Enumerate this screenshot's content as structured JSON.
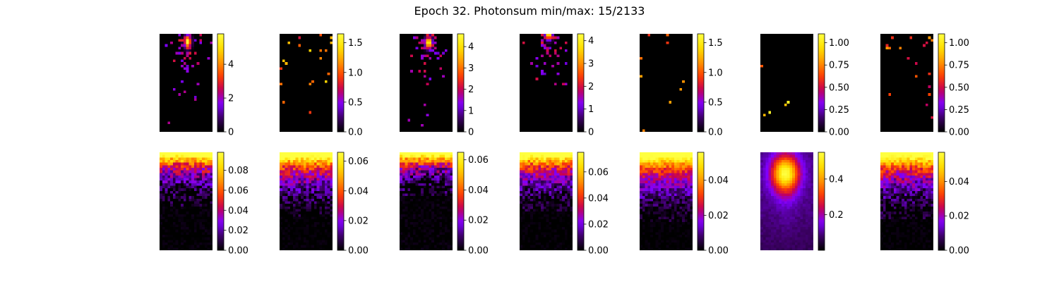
{
  "figure": {
    "title": "Epoch 32. Photonsum min/max: 15/2133"
  },
  "colormap": {
    "name": "gnuplot",
    "stops": [
      "#000000",
      "#3d0066",
      "#8000ff",
      "#c40055",
      "#ff3f00",
      "#ff9900",
      "#ffe000",
      "#ffff40"
    ]
  },
  "chart_data": [
    {
      "type": "heatmap",
      "row": 1,
      "col": 1,
      "pattern": "blob",
      "blob": {
        "cx": 0.53,
        "cy": 0.08,
        "amp": 5.8,
        "spread": 0.12,
        "density": 0.55,
        "noise_floor": 0.0
      },
      "colorbar": {
        "min": 0,
        "max": 5.8,
        "ticks": [
          0,
          2,
          4
        ],
        "tick_labels": [
          "0",
          "2",
          "4"
        ]
      }
    },
    {
      "type": "heatmap",
      "row": 1,
      "col": 2,
      "pattern": "sparse",
      "sparse": {
        "density": 0.035,
        "top_bias": 0.5,
        "level": 0.85
      },
      "colorbar": {
        "min": 0,
        "max": 1.65,
        "ticks": [
          0,
          0.5,
          1.0,
          1.5
        ],
        "tick_labels": [
          "0.0",
          "0.5",
          "1.0",
          "1.5"
        ]
      }
    },
    {
      "type": "heatmap",
      "row": 1,
      "col": 3,
      "pattern": "blob",
      "blob": {
        "cx": 0.55,
        "cy": 0.09,
        "amp": 4.6,
        "spread": 0.13,
        "density": 0.55,
        "noise_floor": 0.0
      },
      "colorbar": {
        "min": 0,
        "max": 4.6,
        "ticks": [
          0,
          1,
          2,
          3,
          4
        ],
        "tick_labels": [
          "0",
          "1",
          "2",
          "3",
          "4"
        ]
      }
    },
    {
      "type": "heatmap",
      "row": 1,
      "col": 4,
      "pattern": "blob",
      "blob": {
        "cx": 0.55,
        "cy": 0.0,
        "amp": 4.3,
        "spread": 0.14,
        "density": 0.5,
        "noise_floor": 0.0
      },
      "colorbar": {
        "min": 0,
        "max": 4.3,
        "ticks": [
          0,
          1,
          2,
          3,
          4
        ],
        "tick_labels": [
          "0",
          "1",
          "2",
          "3",
          "4"
        ]
      }
    },
    {
      "type": "heatmap",
      "row": 1,
      "col": 5,
      "pattern": "sparse",
      "sparse": {
        "density": 0.02,
        "top_bias": 0.85,
        "level": 0.75
      },
      "colorbar": {
        "min": 0,
        "max": 1.65,
        "ticks": [
          0,
          0.5,
          1.0,
          1.5
        ],
        "tick_labels": [
          "0.0",
          "0.5",
          "1.0",
          "1.5"
        ]
      }
    },
    {
      "type": "heatmap",
      "row": 1,
      "col": 6,
      "pattern": "sparse",
      "sparse": {
        "density": 0.008,
        "top_bias": 0.3,
        "level": 0.95
      },
      "colorbar": {
        "min": 0,
        "max": 1.1,
        "ticks": [
          0,
          0.25,
          0.5,
          0.75,
          1.0
        ],
        "tick_labels": [
          "0.00",
          "0.25",
          "0.50",
          "0.75",
          "1.00"
        ]
      }
    },
    {
      "type": "heatmap",
      "row": 1,
      "col": 7,
      "pattern": "sparse",
      "sparse": {
        "density": 0.03,
        "top_bias": 0.9,
        "level": 0.75
      },
      "colorbar": {
        "min": 0,
        "max": 1.1,
        "ticks": [
          0,
          0.25,
          0.5,
          0.75,
          1.0
        ],
        "tick_labels": [
          "0.00",
          "0.25",
          "0.50",
          "0.75",
          "1.00"
        ]
      }
    },
    {
      "type": "heatmap",
      "row": 2,
      "col": 1,
      "pattern": "gradient",
      "gradient": {
        "top": 0.95,
        "decay": 0.45,
        "noise": 0.18
      },
      "colorbar": {
        "min": 0,
        "max": 0.098,
        "ticks": [
          0,
          0.02,
          0.04,
          0.06,
          0.08
        ],
        "tick_labels": [
          "0.00",
          "0.02",
          "0.04",
          "0.06",
          "0.08"
        ]
      }
    },
    {
      "type": "heatmap",
      "row": 2,
      "col": 2,
      "pattern": "gradient",
      "gradient": {
        "top": 0.95,
        "decay": 0.55,
        "noise": 0.15
      },
      "colorbar": {
        "min": 0,
        "max": 0.066,
        "ticks": [
          0,
          0.02,
          0.04,
          0.06
        ],
        "tick_labels": [
          "0.00",
          "0.02",
          "0.04",
          "0.06"
        ]
      }
    },
    {
      "type": "heatmap",
      "row": 2,
      "col": 3,
      "pattern": "gradient",
      "gradient": {
        "top": 0.95,
        "decay": 0.35,
        "noise": 0.2
      },
      "colorbar": {
        "min": 0,
        "max": 0.065,
        "ticks": [
          0,
          0.02,
          0.04,
          0.06
        ],
        "tick_labels": [
          "0.00",
          "0.02",
          "0.04",
          "0.06"
        ]
      }
    },
    {
      "type": "heatmap",
      "row": 2,
      "col": 4,
      "pattern": "gradient",
      "gradient": {
        "top": 0.95,
        "decay": 0.5,
        "noise": 0.15
      },
      "colorbar": {
        "min": 0,
        "max": 0.075,
        "ticks": [
          0,
          0.02,
          0.04,
          0.06
        ],
        "tick_labels": [
          "0.00",
          "0.02",
          "0.04",
          "0.06"
        ]
      }
    },
    {
      "type": "heatmap",
      "row": 2,
      "col": 5,
      "pattern": "gradient",
      "gradient": {
        "top": 0.95,
        "decay": 0.62,
        "noise": 0.12
      },
      "colorbar": {
        "min": 0,
        "max": 0.056,
        "ticks": [
          0,
          0.02,
          0.04
        ],
        "tick_labels": [
          "0.00",
          "0.02",
          "0.04"
        ]
      }
    },
    {
      "type": "heatmap",
      "row": 2,
      "col": 6,
      "pattern": "core",
      "core": {
        "cx": 0.47,
        "cy": 0.22,
        "amp": 0.55,
        "sx": 0.18,
        "sy": 0.13,
        "base": 0.17,
        "tail": 0.1
      },
      "colorbar": {
        "min": 0,
        "max": 0.55,
        "ticks": [
          0.2,
          0.4
        ],
        "tick_labels": [
          "0.2",
          "0.4"
        ]
      }
    },
    {
      "type": "heatmap",
      "row": 2,
      "col": 7,
      "pattern": "gradient",
      "gradient": {
        "top": 0.95,
        "decay": 0.58,
        "noise": 0.15
      },
      "colorbar": {
        "min": 0,
        "max": 0.057,
        "ticks": [
          0,
          0.02,
          0.04
        ],
        "tick_labels": [
          "0.00",
          "0.02",
          "0.04"
        ]
      }
    }
  ]
}
